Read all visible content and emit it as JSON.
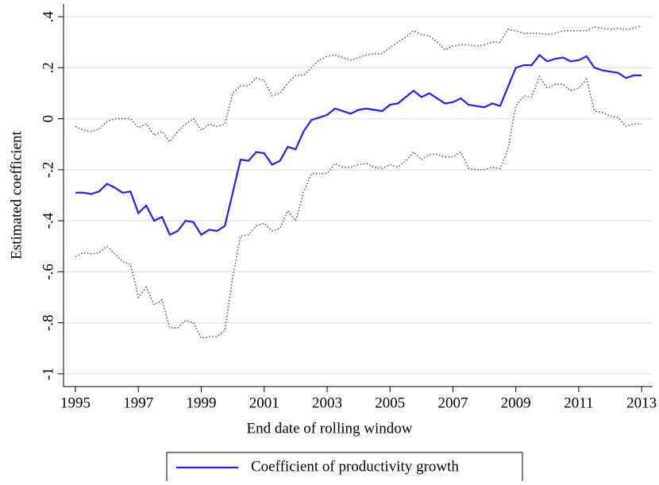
{
  "chart_data": {
    "type": "line",
    "xlabel": "End date of rolling window",
    "ylabel": "Estimated coefficient",
    "x": [
      1995,
      1995.25,
      1995.5,
      1995.75,
      1996,
      1996.25,
      1996.5,
      1996.75,
      1997,
      1997.25,
      1997.5,
      1997.75,
      1998,
      1998.25,
      1998.5,
      1998.75,
      1999,
      1999.25,
      1999.5,
      1999.75,
      2000,
      2000.25,
      2000.5,
      2000.75,
      2001,
      2001.25,
      2001.5,
      2001.75,
      2002,
      2002.25,
      2002.5,
      2002.75,
      2003,
      2003.25,
      2003.5,
      2003.75,
      2004,
      2004.25,
      2004.5,
      2004.75,
      2005,
      2005.25,
      2005.5,
      2005.75,
      2006,
      2006.25,
      2006.5,
      2006.75,
      2007,
      2007.25,
      2007.5,
      2007.75,
      2008,
      2008.25,
      2008.5,
      2008.75,
      2009,
      2009.25,
      2009.5,
      2009.75,
      2010,
      2010.25,
      2010.5,
      2010.75,
      2011,
      2011.25,
      2011.5,
      2011.75,
      2012,
      2012.25,
      2012.5,
      2012.75,
      2013
    ],
    "series": [
      {
        "name": "Coefficient of productivity growth",
        "color": "#1f1fff",
        "line_style": "solid",
        "values": [
          -0.29,
          -0.29,
          -0.295,
          -0.285,
          -0.255,
          -0.27,
          -0.29,
          -0.285,
          -0.37,
          -0.34,
          -0.4,
          -0.385,
          -0.455,
          -0.44,
          -0.4,
          -0.405,
          -0.455,
          -0.435,
          -0.44,
          -0.42,
          -0.29,
          -0.16,
          -0.165,
          -0.13,
          -0.135,
          -0.18,
          -0.165,
          -0.11,
          -0.12,
          -0.05,
          -0.005,
          0.005,
          0.015,
          0.04,
          0.03,
          0.02,
          0.035,
          0.04,
          0.035,
          0.03,
          0.055,
          0.06,
          0.085,
          0.11,
          0.085,
          0.1,
          0.08,
          0.06,
          0.065,
          0.08,
          0.055,
          0.05,
          0.045,
          0.06,
          0.05,
          0.125,
          0.2,
          0.21,
          0.21,
          0.25,
          0.225,
          0.235,
          0.24,
          0.225,
          0.23,
          0.245,
          0.2,
          0.19,
          0.185,
          0.18,
          0.16,
          0.17,
          0.17
        ]
      },
      {
        "color": "#555555",
        "line_style": "dotted",
        "values": [
          -0.03,
          -0.045,
          -0.05,
          -0.04,
          -0.01,
          0,
          0,
          0,
          -0.035,
          -0.02,
          -0.065,
          -0.05,
          -0.09,
          -0.05,
          -0.02,
          0,
          -0.045,
          -0.02,
          -0.03,
          -0.02,
          0.1,
          0.13,
          0.13,
          0.16,
          0.15,
          0.09,
          0.1,
          0.14,
          0.17,
          0.17,
          0.2,
          0.23,
          0.245,
          0.25,
          0.24,
          0.23,
          0.24,
          0.25,
          0.255,
          0.255,
          0.28,
          0.3,
          0.32,
          0.345,
          0.33,
          0.325,
          0.3,
          0.27,
          0.285,
          0.29,
          0.29,
          0.285,
          0.29,
          0.3,
          0.3,
          0.35,
          0.345,
          0.335,
          0.335,
          0.335,
          0.33,
          0.335,
          0.345,
          0.345,
          0.345,
          0.345,
          0.36,
          0.355,
          0.35,
          0.355,
          0.35,
          0.355,
          0.365
        ]
      },
      {
        "color": "#555555",
        "line_style": "dotted",
        "values": [
          -0.54,
          -0.525,
          -0.53,
          -0.525,
          -0.5,
          -0.53,
          -0.56,
          -0.57,
          -0.7,
          -0.66,
          -0.73,
          -0.71,
          -0.82,
          -0.82,
          -0.79,
          -0.8,
          -0.86,
          -0.855,
          -0.855,
          -0.83,
          -0.62,
          -0.46,
          -0.455,
          -0.42,
          -0.41,
          -0.44,
          -0.43,
          -0.36,
          -0.4,
          -0.29,
          -0.215,
          -0.215,
          -0.215,
          -0.175,
          -0.19,
          -0.19,
          -0.18,
          -0.175,
          -0.19,
          -0.195,
          -0.18,
          -0.19,
          -0.165,
          -0.13,
          -0.16,
          -0.14,
          -0.14,
          -0.15,
          -0.15,
          -0.13,
          -0.195,
          -0.2,
          -0.2,
          -0.19,
          -0.195,
          -0.12,
          0.05,
          0.09,
          0.085,
          0.165,
          0.12,
          0.135,
          0.135,
          0.11,
          0.12,
          0.155,
          0.03,
          0.025,
          0.01,
          0.005,
          -0.03,
          -0.02,
          -0.02
        ]
      }
    ],
    "xlim": [
      1994.62,
      2013.35
    ],
    "xticks": [
      1995,
      1997,
      1999,
      2001,
      2003,
      2005,
      2007,
      2009,
      2011,
      2013
    ],
    "ylim": [
      -1.05,
      0.45
    ],
    "yticks": [
      {
        "value": 0.4,
        "label": ".4"
      },
      {
        "value": 0.2,
        "label": ".2"
      },
      0,
      {
        "value": -0.2,
        "label": "-.2"
      },
      {
        "value": -0.4,
        "label": "-.4"
      },
      {
        "value": -0.6,
        "label": "-.6"
      },
      {
        "value": -0.8,
        "label": "-.8"
      },
      -1
    ],
    "grid": true,
    "legend_position": "bottom"
  }
}
